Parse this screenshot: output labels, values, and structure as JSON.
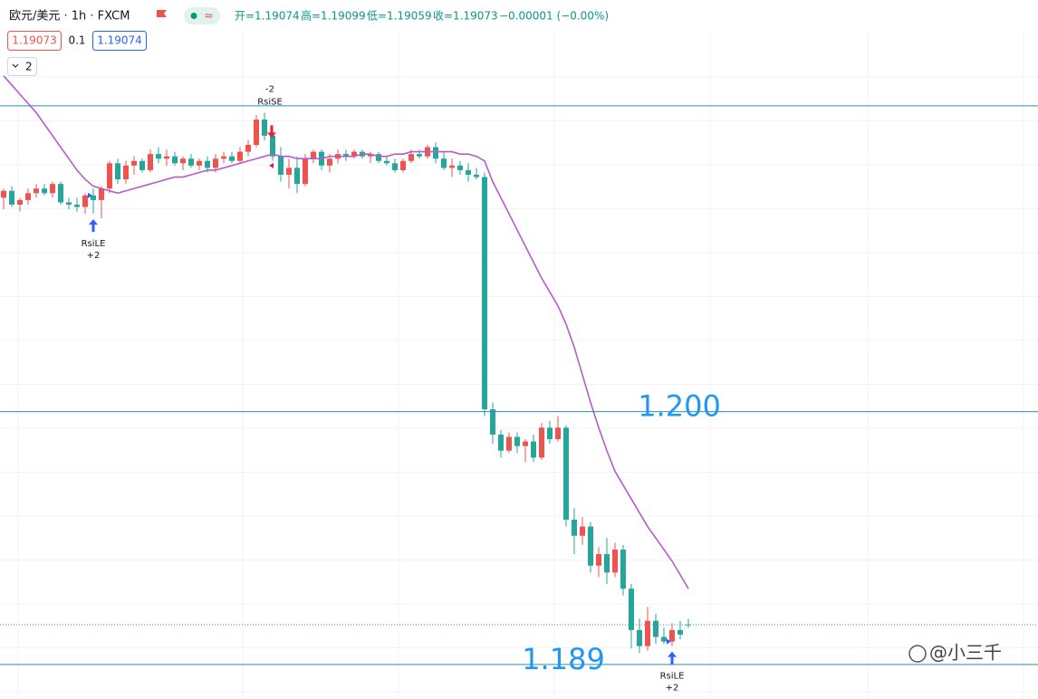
{
  "header": {
    "symbol": "欧元/美元 · 1h · FXCM",
    "open": "开=1.19074",
    "high": "高=1.19099",
    "low": "低=1.19059",
    "close": "收=1.19073",
    "change": "−0.00001 (−0.00%)",
    "bid": "1.19073",
    "spread": "0.1",
    "ask": "1.19074",
    "indicators": "2"
  },
  "watermark": "@小三千",
  "chart_data": {
    "type": "candlestick",
    "ylim": [
      1.1875,
      1.2179
    ],
    "up_color": "#ef5350",
    "down_color": "#26a69a",
    "ohlc": [
      [
        1.2093,
        1.2097,
        1.2088,
        1.2096
      ],
      [
        1.2096,
        1.2098,
        1.2089,
        1.209
      ],
      [
        1.209,
        1.2093,
        1.2087,
        1.2092
      ],
      [
        1.2092,
        1.2097,
        1.209,
        1.2095
      ],
      [
        1.2095,
        1.2099,
        1.2093,
        1.2097
      ],
      [
        1.2097,
        1.2099,
        1.2094,
        1.2095
      ],
      [
        1.2095,
        1.21,
        1.2093,
        1.2099
      ],
      [
        1.2099,
        1.21,
        1.209,
        1.2091
      ],
      [
        1.2091,
        1.2093,
        1.2088,
        1.209
      ],
      [
        1.209,
        1.2093,
        1.2087,
        1.2089
      ],
      [
        1.2089,
        1.2095,
        1.2086,
        1.2094
      ],
      [
        1.2094,
        1.2097,
        1.2086,
        1.2092
      ],
      [
        1.2092,
        1.2098,
        1.2084,
        1.2097
      ],
      [
        1.2097,
        1.2109,
        1.2095,
        1.2108
      ],
      [
        1.2108,
        1.211,
        1.2099,
        1.2101
      ],
      [
        1.2101,
        1.2109,
        1.2099,
        1.2107
      ],
      [
        1.2107,
        1.2111,
        1.2103,
        1.2109
      ],
      [
        1.2109,
        1.211,
        1.2104,
        1.2105
      ],
      [
        1.2105,
        1.2114,
        1.2104,
        1.2112
      ],
      [
        1.2112,
        1.2115,
        1.2108,
        1.211
      ],
      [
        1.211,
        1.2114,
        1.2107,
        1.2111
      ],
      [
        1.2111,
        1.2113,
        1.2107,
        1.2108
      ],
      [
        1.2108,
        1.2111,
        1.2105,
        1.211
      ],
      [
        1.211,
        1.2112,
        1.2106,
        1.2107
      ],
      [
        1.2107,
        1.211,
        1.2105,
        1.2109
      ],
      [
        1.2109,
        1.2111,
        1.2104,
        1.2106
      ],
      [
        1.2106,
        1.2112,
        1.2104,
        1.211
      ],
      [
        1.211,
        1.2113,
        1.2108,
        1.2111
      ],
      [
        1.2111,
        1.2113,
        1.2108,
        1.2109
      ],
      [
        1.2109,
        1.2115,
        1.2108,
        1.2113
      ],
      [
        1.2113,
        1.2118,
        1.2111,
        1.2116
      ],
      [
        1.2116,
        1.2129,
        1.2115,
        1.2127
      ],
      [
        1.2127,
        1.213,
        1.2118,
        1.212
      ],
      [
        1.212,
        1.2123,
        1.2109,
        1.2111
      ],
      [
        1.2111,
        1.2115,
        1.21,
        1.2103
      ],
      [
        1.2103,
        1.211,
        1.2097,
        1.2106
      ],
      [
        1.2106,
        1.2111,
        1.2095,
        1.2099
      ],
      [
        1.2099,
        1.2112,
        1.2098,
        1.211
      ],
      [
        1.211,
        1.2114,
        1.2108,
        1.2113
      ],
      [
        1.2113,
        1.2114,
        1.2105,
        1.2107
      ],
      [
        1.2107,
        1.2112,
        1.2104,
        1.211
      ],
      [
        1.211,
        1.2114,
        1.2108,
        1.2112
      ],
      [
        1.2112,
        1.2114,
        1.2109,
        1.2111
      ],
      [
        1.2111,
        1.2114,
        1.211,
        1.2113
      ],
      [
        1.2113,
        1.2114,
        1.211,
        1.2111
      ],
      [
        1.2111,
        1.2113,
        1.2108,
        1.2112
      ],
      [
        1.2112,
        1.2113,
        1.2108,
        1.2109
      ],
      [
        1.2109,
        1.2111,
        1.2107,
        1.2108
      ],
      [
        1.2108,
        1.211,
        1.2104,
        1.2105
      ],
      [
        1.2105,
        1.211,
        1.2104,
        1.2109
      ],
      [
        1.2109,
        1.2114,
        1.2108,
        1.2112
      ],
      [
        1.2112,
        1.2114,
        1.211,
        1.2111
      ],
      [
        1.2111,
        1.2116,
        1.211,
        1.2115
      ],
      [
        1.2115,
        1.2117,
        1.2108,
        1.211
      ],
      [
        1.211,
        1.2113,
        1.2105,
        1.2106
      ],
      [
        1.2106,
        1.211,
        1.2102,
        1.2107
      ],
      [
        1.2107,
        1.2109,
        1.2103,
        1.2105
      ],
      [
        1.2105,
        1.2108,
        1.21,
        1.2103
      ],
      [
        1.2103,
        1.2106,
        1.2101,
        1.2102
      ],
      [
        1.2102,
        1.2104,
        1.1998,
        1.2001
      ],
      [
        1.2001,
        1.2004,
        1.1986,
        1.199
      ],
      [
        1.199,
        1.1992,
        1.198,
        1.1983
      ],
      [
        1.1983,
        1.1991,
        1.1982,
        1.1989
      ],
      [
        1.1989,
        1.1991,
        1.1982,
        1.1985
      ],
      [
        1.1985,
        1.1988,
        1.1978,
        1.1987
      ],
      [
        1.1987,
        1.199,
        1.1978,
        1.198
      ],
      [
        1.198,
        1.1995,
        1.1979,
        1.1993
      ],
      [
        1.1993,
        1.1996,
        1.1986,
        1.1988
      ],
      [
        1.1988,
        1.1998,
        1.1987,
        1.1993
      ],
      [
        1.1993,
        1.1994,
        1.195,
        1.1953
      ],
      [
        1.1953,
        1.1958,
        1.1938,
        1.1946
      ],
      [
        1.1946,
        1.1954,
        1.1942,
        1.195
      ],
      [
        1.195,
        1.1952,
        1.193,
        1.1933
      ],
      [
        1.1933,
        1.1941,
        1.1928,
        1.1938
      ],
      [
        1.1938,
        1.1945,
        1.1925,
        1.193
      ],
      [
        1.193,
        1.1943,
        1.1928,
        1.194
      ],
      [
        1.194,
        1.1942,
        1.192,
        1.1923
      ],
      [
        1.1923,
        1.1925,
        1.1897,
        1.1905
      ],
      [
        1.1905,
        1.191,
        1.1895,
        1.1898
      ],
      [
        1.1898,
        1.1915,
        1.1896,
        1.1909
      ],
      [
        1.1909,
        1.1912,
        1.1899,
        1.1902
      ],
      [
        1.1902,
        1.1906,
        1.1899,
        1.19
      ],
      [
        1.19,
        1.1908,
        1.1898,
        1.1905
      ],
      [
        1.1905,
        1.1909,
        1.1901,
        1.1903
      ],
      [
        1.19074,
        1.19099,
        1.19059,
        1.19073
      ]
    ],
    "ma": {
      "color": "#b65cc9",
      "values": [
        1.2146,
        1.2142,
        1.2138,
        1.2134,
        1.213,
        1.2125,
        1.212,
        1.2115,
        1.211,
        1.2105,
        1.2101,
        1.2098,
        1.2097,
        1.2096,
        1.2095,
        1.2096,
        1.2097,
        1.2098,
        1.2099,
        1.21,
        1.2101,
        1.2102,
        1.2102,
        1.2103,
        1.2104,
        1.2105,
        1.2105,
        1.2106,
        1.2107,
        1.2108,
        1.2109,
        1.211,
        1.2111,
        1.2112,
        1.2111,
        1.2111,
        1.211,
        1.211,
        1.211,
        1.211,
        1.2111,
        1.2111,
        1.2111,
        1.2111,
        1.2112,
        1.2112,
        1.2111,
        1.2111,
        1.2112,
        1.2112,
        1.2113,
        1.2113,
        1.2113,
        1.2113,
        1.2113,
        1.2113,
        1.2112,
        1.2112,
        1.2111,
        1.2109,
        1.21,
        1.2093,
        1.2086,
        1.2079,
        1.2072,
        1.2065,
        1.2058,
        1.2052,
        1.2046,
        1.2038,
        1.2028,
        1.2016,
        1.2004,
        1.1993,
        1.1983,
        1.1974,
        1.1968,
        1.1962,
        1.1956,
        1.195,
        1.1945,
        1.194,
        1.1935,
        1.1929,
        1.1923
      ]
    },
    "hlines": [
      {
        "value": 1.2133
      },
      {
        "value": 1.2,
        "label": "1.200"
      },
      {
        "value": 1.189,
        "label": "1.189"
      }
    ],
    "hline_color": "#2a8fb0",
    "signals": [
      {
        "at": 11,
        "side": "long",
        "name": "RsiLE",
        "amount": "+2"
      },
      {
        "at": 32,
        "side": "short",
        "name": "RsiSE",
        "amount": "-2"
      },
      {
        "at": 82,
        "side": "long",
        "name": "RsiLE",
        "amount": "+2"
      }
    ]
  }
}
